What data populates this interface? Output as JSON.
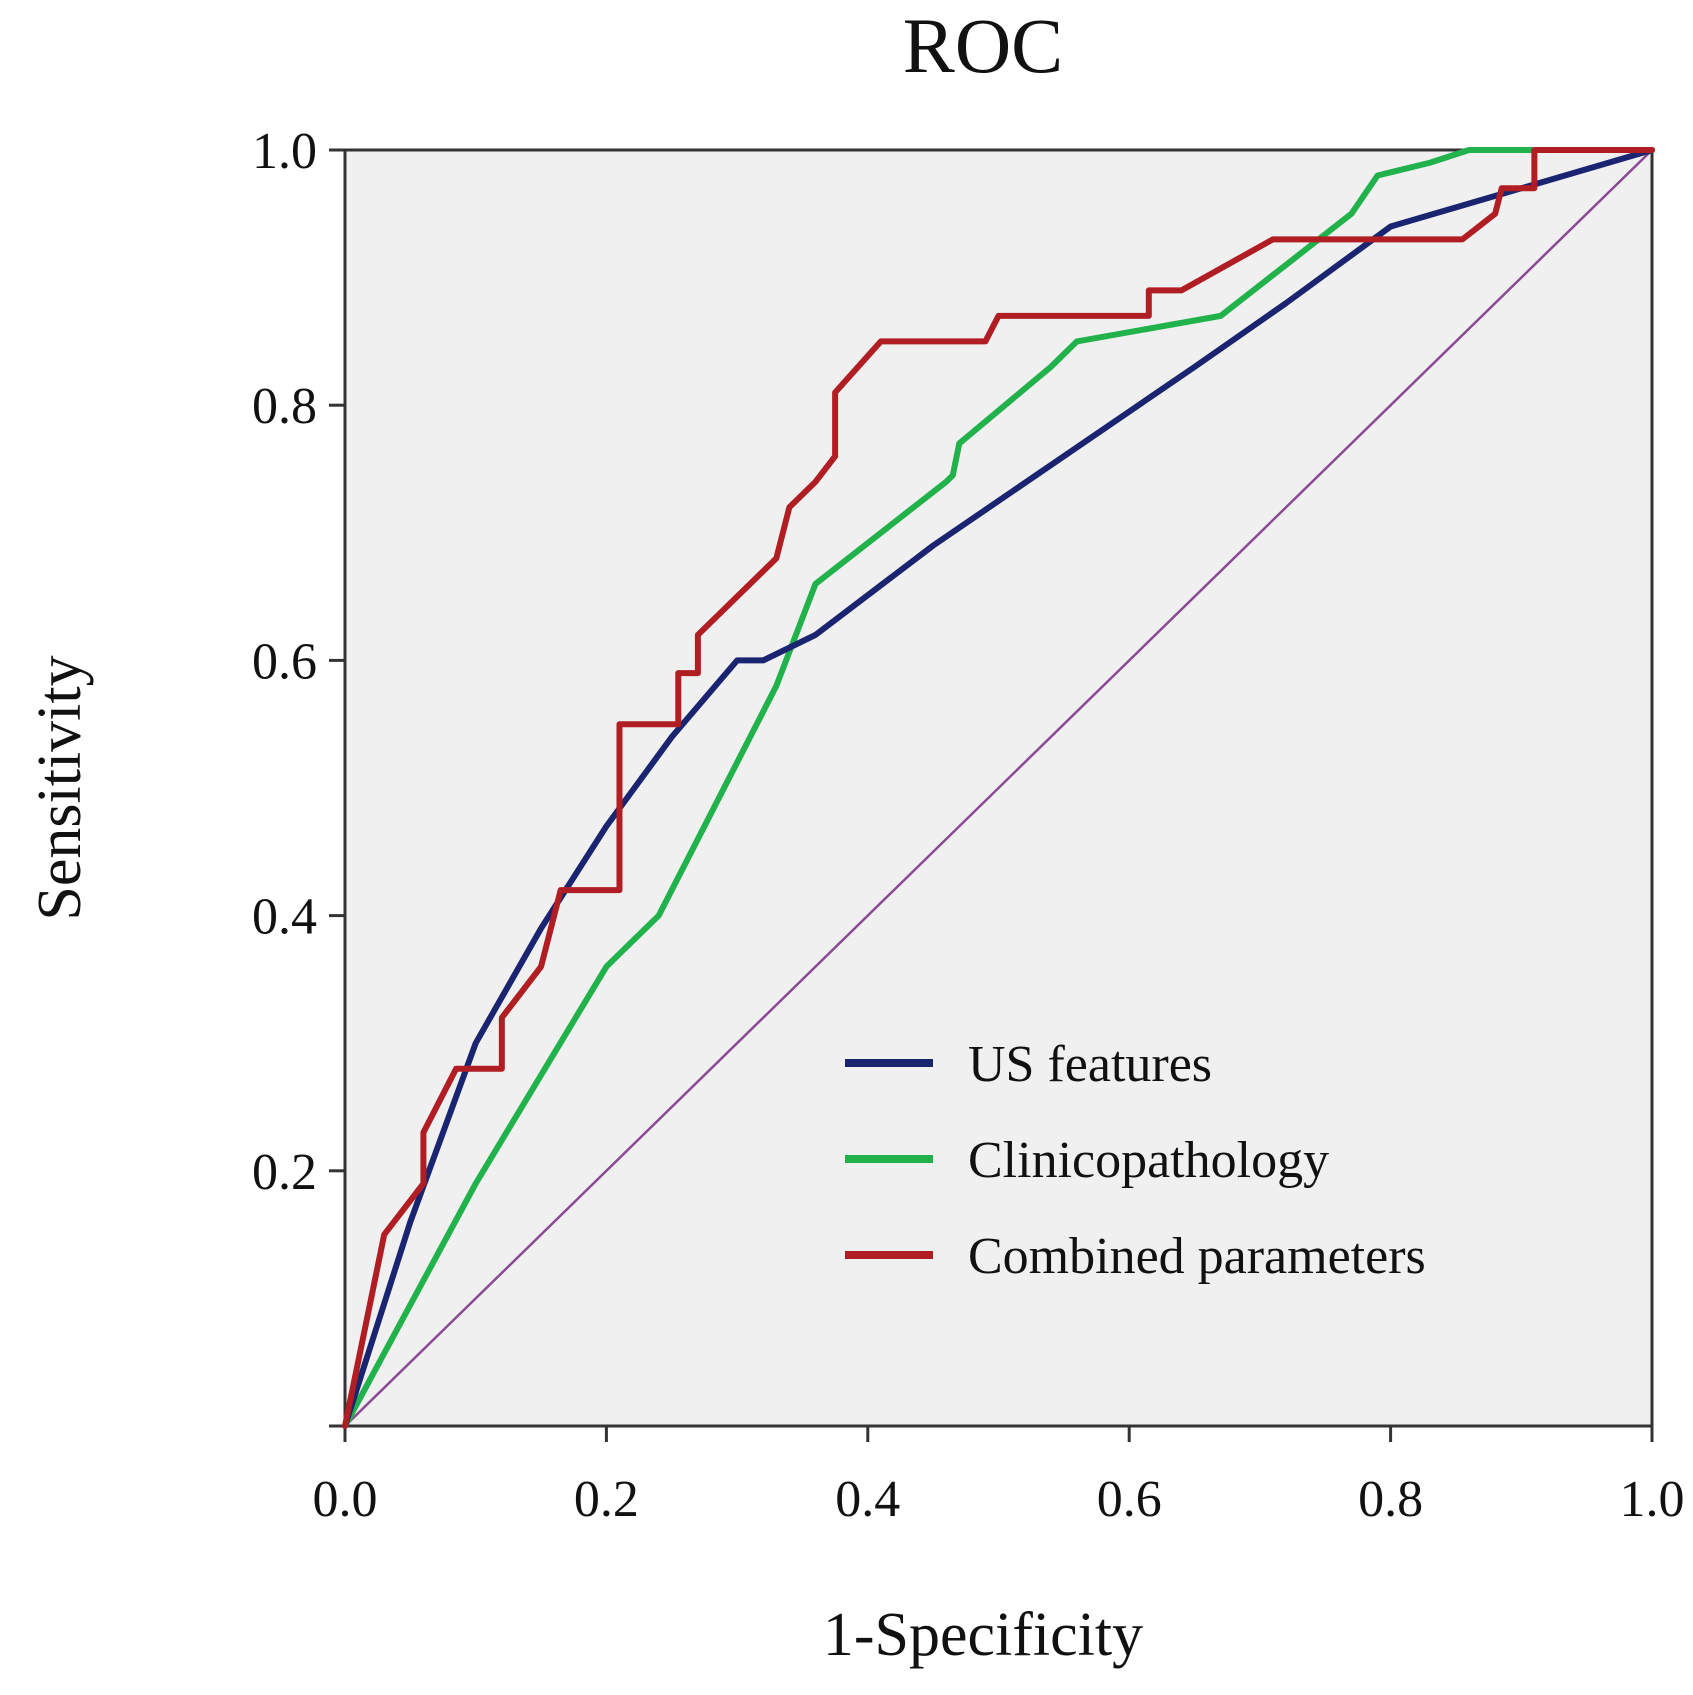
{
  "chart_data": {
    "type": "line",
    "title": "ROC",
    "xlabel": "1-Specificity",
    "ylabel": "Sensitivity",
    "xlim": [
      0,
      1
    ],
    "ylim": [
      0,
      1
    ],
    "x_ticks": [
      {
        "value": 0.0,
        "label": "0.0"
      },
      {
        "value": 0.2,
        "label": "0.2"
      },
      {
        "value": 0.4,
        "label": "0.4"
      },
      {
        "value": 0.6,
        "label": "0.6"
      },
      {
        "value": 0.8,
        "label": "0.8"
      },
      {
        "value": 1.0,
        "label": "1.0"
      }
    ],
    "y_ticks": [
      {
        "value": 0.2,
        "label": "0.2"
      },
      {
        "value": 0.4,
        "label": "0.4"
      },
      {
        "value": 0.6,
        "label": "0.6"
      },
      {
        "value": 0.8,
        "label": "0.8"
      },
      {
        "value": 1.0,
        "label": "1.0"
      }
    ],
    "grid": false,
    "legend_position": "lower-right",
    "reference_line": {
      "name": "Reference line",
      "color": "#8a4a94",
      "x": [
        0,
        1
      ],
      "y": [
        0,
        1
      ]
    },
    "series": [
      {
        "name": "US features",
        "color": "#1a2470",
        "x": [
          0,
          0.05,
          0.1,
          0.15,
          0.2,
          0.25,
          0.3,
          0.32,
          0.36,
          0.45,
          0.55,
          0.65,
          0.72,
          0.8,
          0.9,
          1.0
        ],
        "y": [
          0,
          0.16,
          0.3,
          0.39,
          0.47,
          0.54,
          0.6,
          0.6,
          0.62,
          0.69,
          0.76,
          0.83,
          0.88,
          0.94,
          0.97,
          1.0
        ]
      },
      {
        "name": "Clinicopathology",
        "color": "#21b24b",
        "x": [
          0,
          0.1,
          0.2,
          0.24,
          0.28,
          0.33,
          0.36,
          0.46,
          0.465,
          0.47,
          0.54,
          0.56,
          0.67,
          0.72,
          0.77,
          0.79,
          0.83,
          0.86,
          1.0
        ],
        "y": [
          0,
          0.19,
          0.36,
          0.4,
          0.48,
          0.58,
          0.66,
          0.74,
          0.745,
          0.77,
          0.83,
          0.85,
          0.87,
          0.91,
          0.95,
          0.98,
          0.99,
          1.0,
          1.0
        ]
      },
      {
        "name": "Combined parameters",
        "color": "#b01e23",
        "x": [
          0,
          0.03,
          0.06,
          0.06,
          0.085,
          0.12,
          0.12,
          0.15,
          0.165,
          0.21,
          0.21,
          0.255,
          0.255,
          0.27,
          0.27,
          0.33,
          0.34,
          0.36,
          0.375,
          0.375,
          0.41,
          0.49,
          0.5,
          0.615,
          0.615,
          0.64,
          0.71,
          0.855,
          0.88,
          0.885,
          0.91,
          0.91,
          1.0
        ],
        "y": [
          0,
          0.15,
          0.19,
          0.23,
          0.28,
          0.28,
          0.32,
          0.36,
          0.42,
          0.42,
          0.55,
          0.55,
          0.59,
          0.59,
          0.62,
          0.68,
          0.72,
          0.74,
          0.76,
          0.81,
          0.85,
          0.85,
          0.87,
          0.87,
          0.89,
          0.89,
          0.93,
          0.93,
          0.95,
          0.97,
          0.97,
          1.0,
          1.0
        ]
      }
    ]
  }
}
